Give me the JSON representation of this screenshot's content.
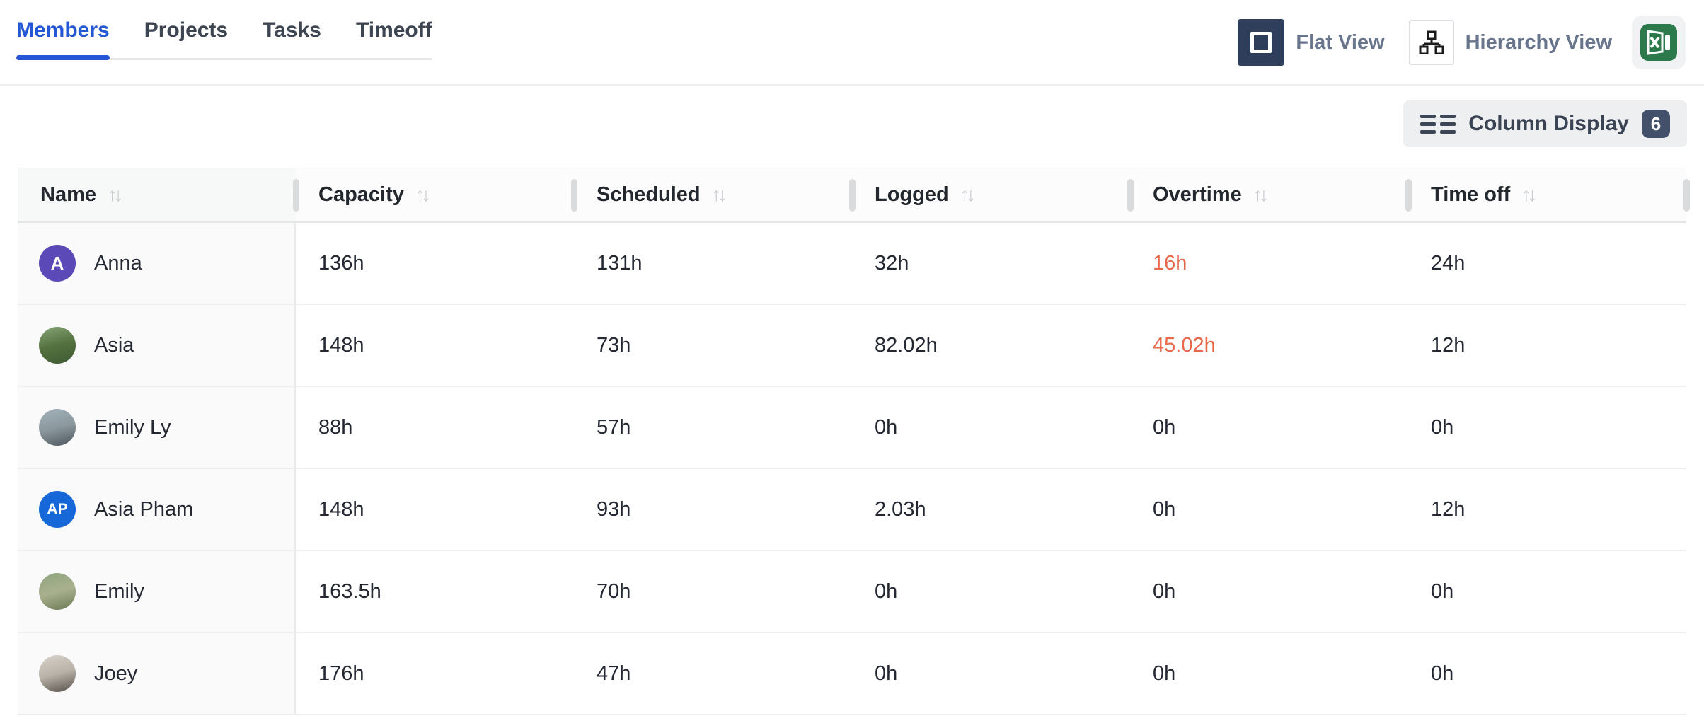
{
  "colors": {
    "accent": "#2457d5",
    "alert": "#e8684c",
    "navy": "#2f3e5b",
    "excel_green": "#2c7a4b"
  },
  "tabs": {
    "items": [
      {
        "label": "Members",
        "active": true
      },
      {
        "label": "Projects",
        "active": false
      },
      {
        "label": "Tasks",
        "active": false
      },
      {
        "label": "Timeoff",
        "active": false
      }
    ]
  },
  "toolbar": {
    "flat_view_label": "Flat View",
    "hierarchy_view_label": "Hierarchy View",
    "column_display_label": "Column Display",
    "column_display_count": "6"
  },
  "table": {
    "columns": [
      {
        "label": "Name"
      },
      {
        "label": "Capacity"
      },
      {
        "label": "Scheduled"
      },
      {
        "label": "Logged"
      },
      {
        "label": "Overtime"
      },
      {
        "label": "Time off"
      }
    ],
    "rows": [
      {
        "name": "Anna",
        "avatar": {
          "kind": "initials",
          "text": "A",
          "bg": "#5a49b7"
        },
        "capacity": "136h",
        "scheduled": "131h",
        "logged": "32h",
        "overtime": "16h",
        "overtime_alert": true,
        "timeoff": "24h"
      },
      {
        "name": "Asia",
        "avatar": {
          "kind": "photo",
          "palette": [
            "#86a477",
            "#54713f",
            "#3e5a33"
          ]
        },
        "capacity": "148h",
        "scheduled": "73h",
        "logged": "82.02h",
        "overtime": "45.02h",
        "overtime_alert": true,
        "timeoff": "12h"
      },
      {
        "name": "Emily Ly",
        "avatar": {
          "kind": "photo",
          "palette": [
            "#a3b2ba",
            "#8b989e",
            "#4d555c"
          ]
        },
        "capacity": "88h",
        "scheduled": "57h",
        "logged": "0h",
        "overtime": "0h",
        "overtime_alert": false,
        "timeoff": "0h"
      },
      {
        "name": "Asia Pham",
        "avatar": {
          "kind": "initials",
          "text": "AP",
          "bg": "#1668d8"
        },
        "capacity": "148h",
        "scheduled": "93h",
        "logged": "2.03h",
        "overtime": "0h",
        "overtime_alert": false,
        "timeoff": "12h"
      },
      {
        "name": "Emily",
        "avatar": {
          "kind": "photo",
          "palette": [
            "#8fa57f",
            "#a9b08e",
            "#6b7a55"
          ]
        },
        "capacity": "163.5h",
        "scheduled": "70h",
        "logged": "0h",
        "overtime": "0h",
        "overtime_alert": false,
        "timeoff": "0h"
      },
      {
        "name": "Joey",
        "avatar": {
          "kind": "photo",
          "palette": [
            "#d8d3cb",
            "#b9b2a8",
            "#55504b"
          ]
        },
        "capacity": "176h",
        "scheduled": "47h",
        "logged": "0h",
        "overtime": "0h",
        "overtime_alert": false,
        "timeoff": "0h"
      }
    ],
    "sort_icon": "↑↓"
  }
}
